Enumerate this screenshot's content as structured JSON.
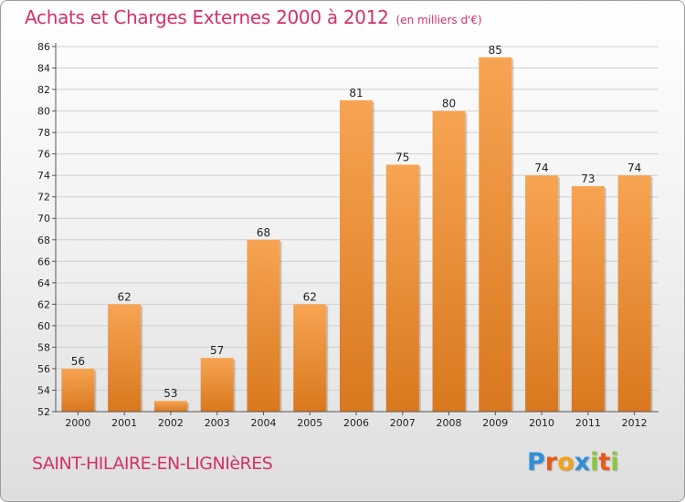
{
  "title": "Achats et Charges Externes 2000 à 2012",
  "unit_label": "(en milliers d'€)",
  "commune": "SAINT-HILAIRE-EN-LIGNIèRES",
  "logo": {
    "name": "Proxiti",
    "letters": [
      {
        "ch": "P",
        "color": "#2f8fd8"
      },
      {
        "ch": "r",
        "color": "#e85a1c"
      },
      {
        "ch": "o",
        "color": "#f0a21b"
      },
      {
        "ch": "x",
        "color": "#2f8fd8"
      },
      {
        "ch": "i",
        "color": "#8cc63e"
      },
      {
        "ch": "t",
        "color": "#e85a1c"
      },
      {
        "ch": "i",
        "color": "#8cc63e"
      }
    ]
  },
  "colors": {
    "bar_light": "#f7a452",
    "bar_dark": "#d9781e",
    "title": "#d4306a",
    "grid": "#d0d0d0"
  },
  "chart_data": {
    "type": "bar",
    "categories": [
      "2000",
      "2001",
      "2002",
      "2003",
      "2004",
      "2005",
      "2006",
      "2007",
      "2008",
      "2009",
      "2010",
      "2011",
      "2012"
    ],
    "values": [
      56,
      62,
      53,
      57,
      68,
      62,
      81,
      75,
      80,
      85,
      74,
      73,
      74
    ],
    "ylim": [
      52,
      86
    ],
    "yticks": [
      52,
      54,
      56,
      58,
      60,
      62,
      64,
      66,
      68,
      70,
      72,
      74,
      76,
      78,
      80,
      82,
      84,
      86
    ],
    "grid": true
  }
}
